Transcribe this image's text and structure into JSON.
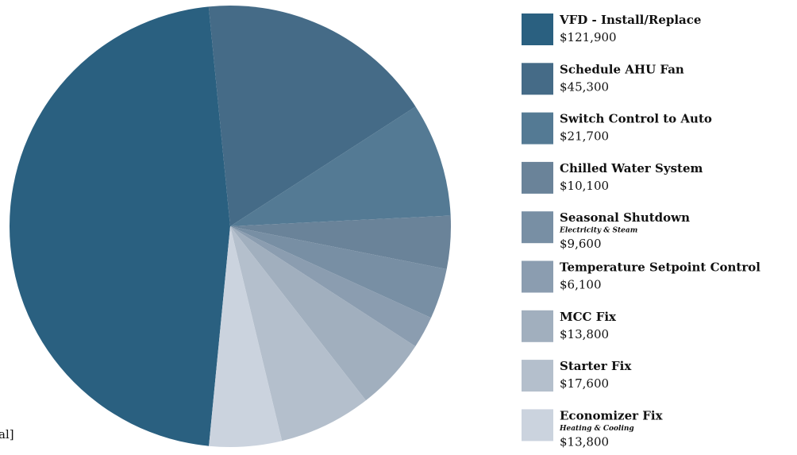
{
  "chart_data": {
    "type": "pie",
    "categories": [
      "VFD - Install/Replace",
      "Schedule AHU Fan",
      "Switch Control to Auto",
      "Chilled Water System",
      "Seasonal Shutdown",
      "Temperature Setpoint Control",
      "MCC Fix",
      "Starter Fix",
      "Economizer Fix"
    ],
    "category_notes": [
      null,
      null,
      null,
      null,
      "Electricity & Steam",
      null,
      null,
      null,
      "Heating & Cooling"
    ],
    "values": [
      121900,
      45300,
      21700,
      10100,
      9600,
      6100,
      13800,
      17600,
      13800
    ],
    "value_labels": [
      "$121,900",
      "$45,300",
      "$21,700",
      "$10,100",
      "$9,600",
      "$6,100",
      "$13,800",
      "$17,600",
      "$13,800"
    ],
    "colors": [
      "#2a6080",
      "#456b87",
      "#547a94",
      "#6a8399",
      "#788fa4",
      "#8b9db0",
      "#a1afbe",
      "#b4bfcc",
      "#cbd3de"
    ],
    "note": "al]"
  }
}
